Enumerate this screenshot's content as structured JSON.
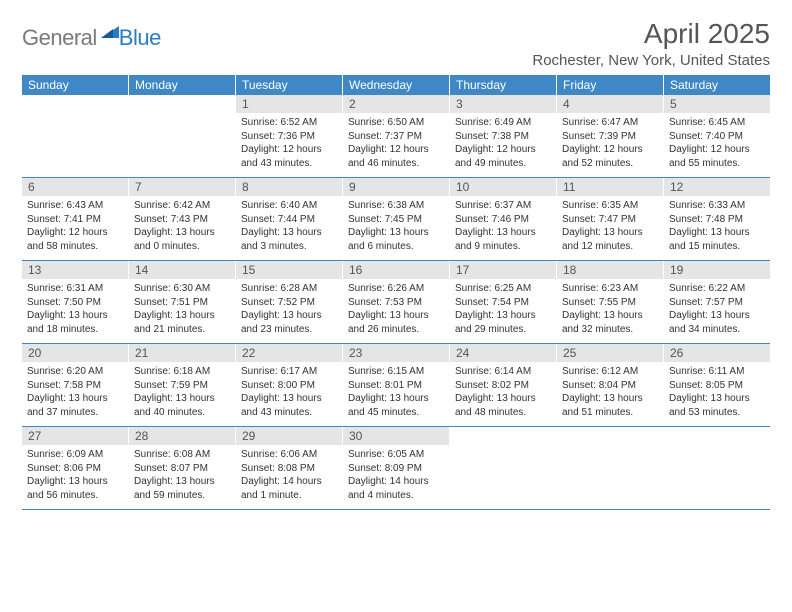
{
  "logo": {
    "general": "General",
    "blue": "Blue"
  },
  "title": "April 2025",
  "location": "Rochester, New York, United States",
  "accent_color": "#3f88c5",
  "daynum_bg": "#e5e5e5",
  "text_color": "#333333",
  "page_bg": "#ffffff",
  "header_labels": [
    "Sunday",
    "Monday",
    "Tuesday",
    "Wednesday",
    "Thursday",
    "Friday",
    "Saturday"
  ],
  "weeks": [
    [
      null,
      null,
      {
        "n": "1",
        "sr": "Sunrise: 6:52 AM",
        "ss": "Sunset: 7:36 PM",
        "dl": "Daylight: 12 hours and 43 minutes."
      },
      {
        "n": "2",
        "sr": "Sunrise: 6:50 AM",
        "ss": "Sunset: 7:37 PM",
        "dl": "Daylight: 12 hours and 46 minutes."
      },
      {
        "n": "3",
        "sr": "Sunrise: 6:49 AM",
        "ss": "Sunset: 7:38 PM",
        "dl": "Daylight: 12 hours and 49 minutes."
      },
      {
        "n": "4",
        "sr": "Sunrise: 6:47 AM",
        "ss": "Sunset: 7:39 PM",
        "dl": "Daylight: 12 hours and 52 minutes."
      },
      {
        "n": "5",
        "sr": "Sunrise: 6:45 AM",
        "ss": "Sunset: 7:40 PM",
        "dl": "Daylight: 12 hours and 55 minutes."
      }
    ],
    [
      {
        "n": "6",
        "sr": "Sunrise: 6:43 AM",
        "ss": "Sunset: 7:41 PM",
        "dl": "Daylight: 12 hours and 58 minutes."
      },
      {
        "n": "7",
        "sr": "Sunrise: 6:42 AM",
        "ss": "Sunset: 7:43 PM",
        "dl": "Daylight: 13 hours and 0 minutes."
      },
      {
        "n": "8",
        "sr": "Sunrise: 6:40 AM",
        "ss": "Sunset: 7:44 PM",
        "dl": "Daylight: 13 hours and 3 minutes."
      },
      {
        "n": "9",
        "sr": "Sunrise: 6:38 AM",
        "ss": "Sunset: 7:45 PM",
        "dl": "Daylight: 13 hours and 6 minutes."
      },
      {
        "n": "10",
        "sr": "Sunrise: 6:37 AM",
        "ss": "Sunset: 7:46 PM",
        "dl": "Daylight: 13 hours and 9 minutes."
      },
      {
        "n": "11",
        "sr": "Sunrise: 6:35 AM",
        "ss": "Sunset: 7:47 PM",
        "dl": "Daylight: 13 hours and 12 minutes."
      },
      {
        "n": "12",
        "sr": "Sunrise: 6:33 AM",
        "ss": "Sunset: 7:48 PM",
        "dl": "Daylight: 13 hours and 15 minutes."
      }
    ],
    [
      {
        "n": "13",
        "sr": "Sunrise: 6:31 AM",
        "ss": "Sunset: 7:50 PM",
        "dl": "Daylight: 13 hours and 18 minutes."
      },
      {
        "n": "14",
        "sr": "Sunrise: 6:30 AM",
        "ss": "Sunset: 7:51 PM",
        "dl": "Daylight: 13 hours and 21 minutes."
      },
      {
        "n": "15",
        "sr": "Sunrise: 6:28 AM",
        "ss": "Sunset: 7:52 PM",
        "dl": "Daylight: 13 hours and 23 minutes."
      },
      {
        "n": "16",
        "sr": "Sunrise: 6:26 AM",
        "ss": "Sunset: 7:53 PM",
        "dl": "Daylight: 13 hours and 26 minutes."
      },
      {
        "n": "17",
        "sr": "Sunrise: 6:25 AM",
        "ss": "Sunset: 7:54 PM",
        "dl": "Daylight: 13 hours and 29 minutes."
      },
      {
        "n": "18",
        "sr": "Sunrise: 6:23 AM",
        "ss": "Sunset: 7:55 PM",
        "dl": "Daylight: 13 hours and 32 minutes."
      },
      {
        "n": "19",
        "sr": "Sunrise: 6:22 AM",
        "ss": "Sunset: 7:57 PM",
        "dl": "Daylight: 13 hours and 34 minutes."
      }
    ],
    [
      {
        "n": "20",
        "sr": "Sunrise: 6:20 AM",
        "ss": "Sunset: 7:58 PM",
        "dl": "Daylight: 13 hours and 37 minutes."
      },
      {
        "n": "21",
        "sr": "Sunrise: 6:18 AM",
        "ss": "Sunset: 7:59 PM",
        "dl": "Daylight: 13 hours and 40 minutes."
      },
      {
        "n": "22",
        "sr": "Sunrise: 6:17 AM",
        "ss": "Sunset: 8:00 PM",
        "dl": "Daylight: 13 hours and 43 minutes."
      },
      {
        "n": "23",
        "sr": "Sunrise: 6:15 AM",
        "ss": "Sunset: 8:01 PM",
        "dl": "Daylight: 13 hours and 45 minutes."
      },
      {
        "n": "24",
        "sr": "Sunrise: 6:14 AM",
        "ss": "Sunset: 8:02 PM",
        "dl": "Daylight: 13 hours and 48 minutes."
      },
      {
        "n": "25",
        "sr": "Sunrise: 6:12 AM",
        "ss": "Sunset: 8:04 PM",
        "dl": "Daylight: 13 hours and 51 minutes."
      },
      {
        "n": "26",
        "sr": "Sunrise: 6:11 AM",
        "ss": "Sunset: 8:05 PM",
        "dl": "Daylight: 13 hours and 53 minutes."
      }
    ],
    [
      {
        "n": "27",
        "sr": "Sunrise: 6:09 AM",
        "ss": "Sunset: 8:06 PM",
        "dl": "Daylight: 13 hours and 56 minutes."
      },
      {
        "n": "28",
        "sr": "Sunrise: 6:08 AM",
        "ss": "Sunset: 8:07 PM",
        "dl": "Daylight: 13 hours and 59 minutes."
      },
      {
        "n": "29",
        "sr": "Sunrise: 6:06 AM",
        "ss": "Sunset: 8:08 PM",
        "dl": "Daylight: 14 hours and 1 minute."
      },
      {
        "n": "30",
        "sr": "Sunrise: 6:05 AM",
        "ss": "Sunset: 8:09 PM",
        "dl": "Daylight: 14 hours and 4 minutes."
      },
      null,
      null,
      null
    ]
  ]
}
